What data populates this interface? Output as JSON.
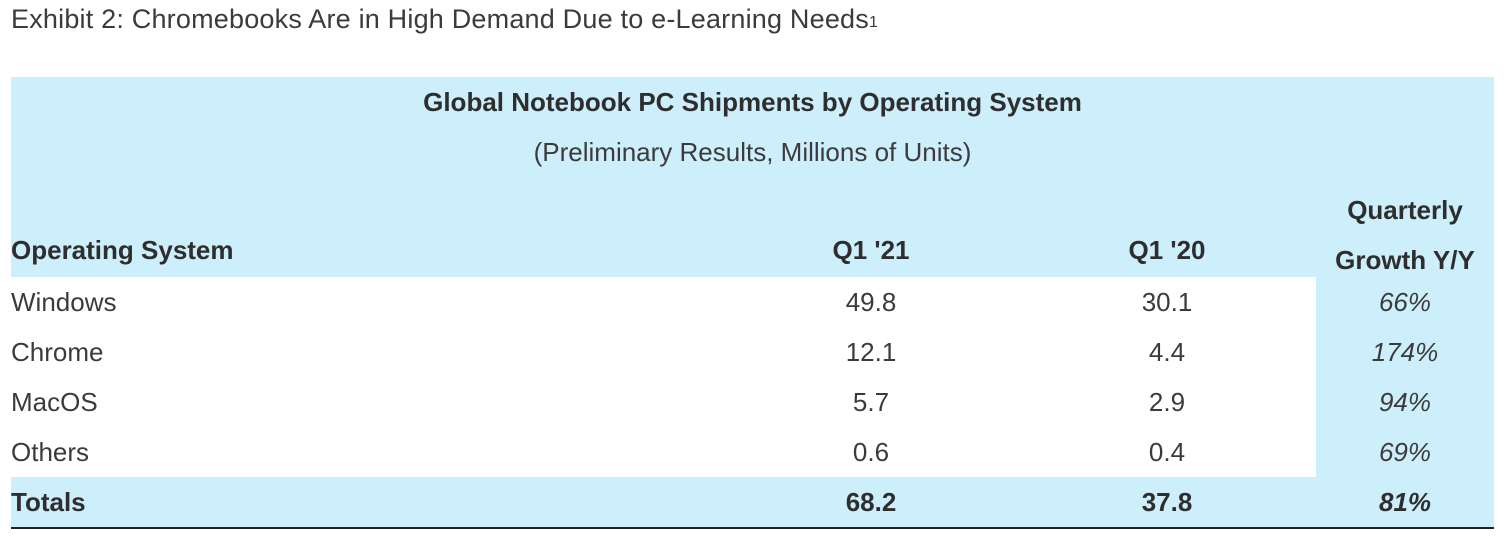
{
  "exhibit": {
    "title": "Exhibit 2: Chromebooks Are in High Demand Due to e-Learning Needs",
    "footnote": "1"
  },
  "chart_data": {
    "type": "table",
    "title": "Global Notebook PC Shipments by Operating System",
    "subtitle": "(Preliminary Results, Millions of Units)",
    "columns": {
      "os": "Operating System",
      "q121": "Q1 '21",
      "q120": "Q1 '20",
      "growth_line1": "Quarterly",
      "growth_line2": "Growth Y/Y"
    },
    "rows": [
      {
        "os": "Windows",
        "q121": "49.8",
        "q120": "30.1",
        "growth": "66%"
      },
      {
        "os": "Chrome",
        "q121": "12.1",
        "q120": "4.4",
        "growth": "174%"
      },
      {
        "os": "MacOS",
        "q121": "5.7",
        "q120": "2.9",
        "growth": "94%"
      },
      {
        "os": "Others",
        "q121": "0.6",
        "q120": "0.4",
        "growth": "69%"
      }
    ],
    "totals": {
      "os": "Totals",
      "q121": "68.2",
      "q120": "37.8",
      "growth": "81%"
    }
  },
  "colors": {
    "header_background": "#cdeefb",
    "text": "#333333"
  }
}
